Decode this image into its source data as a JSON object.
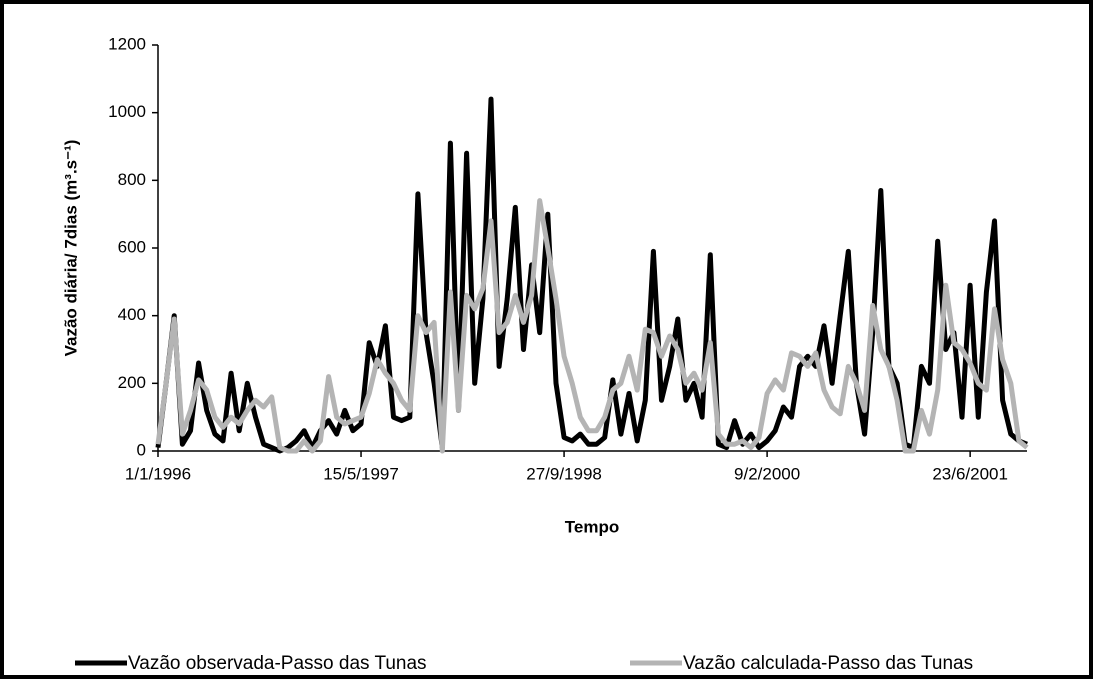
{
  "chart_data": {
    "type": "line",
    "ylabel": "Vazão diária/ 7dias (m³.s⁻¹)",
    "xlabel": "Tempo",
    "x": [
      0,
      20,
      40,
      60,
      80,
      100,
      120,
      140,
      160,
      180,
      200,
      220,
      240,
      260,
      280,
      300,
      320,
      340,
      360,
      380,
      400,
      420,
      440,
      460,
      480,
      500,
      520,
      540,
      560,
      580,
      600,
      620,
      640,
      660,
      680,
      700,
      720,
      740,
      760,
      780,
      800,
      820,
      840,
      860,
      880,
      900,
      920,
      940,
      960,
      980,
      1000,
      1020,
      1040,
      1060,
      1080,
      1100,
      1120,
      1140,
      1160,
      1180,
      1200,
      1220,
      1240,
      1260,
      1280,
      1300,
      1320,
      1340,
      1360,
      1380,
      1400,
      1420,
      1440,
      1460,
      1480,
      1500,
      1520,
      1540,
      1560,
      1580,
      1600,
      1620,
      1640,
      1660,
      1680,
      1700,
      1720,
      1740,
      1760,
      1780,
      1800,
      1820,
      1840,
      1860,
      1880,
      1900,
      1920,
      1940,
      1960,
      1980,
      2000,
      2020,
      2040,
      2060,
      2080,
      2100,
      2120,
      2140
    ],
    "series": [
      {
        "name": "Vazão observada-Passo das Tunas",
        "color": "#000000",
        "values": [
          10,
          200,
          400,
          20,
          60,
          260,
          120,
          50,
          30,
          230,
          60,
          200,
          100,
          20,
          10,
          0,
          10,
          30,
          60,
          10,
          60,
          90,
          50,
          120,
          60,
          80,
          320,
          250,
          370,
          100,
          90,
          100,
          760,
          350,
          200,
          10,
          910,
          120,
          880,
          200,
          450,
          1040,
          250,
          450,
          720,
          300,
          550,
          350,
          700,
          200,
          40,
          30,
          50,
          20,
          20,
          40,
          210,
          50,
          170,
          30,
          150,
          590,
          150,
          250,
          390,
          150,
          200,
          100,
          580,
          20,
          10,
          90,
          20,
          50,
          10,
          30,
          60,
          130,
          100,
          250,
          280,
          250,
          370,
          200,
          400,
          590,
          200,
          50,
          350,
          770,
          250,
          200,
          20,
          10,
          250,
          200,
          620,
          300,
          350,
          100,
          490,
          100,
          470,
          680,
          150,
          50,
          30,
          20
        ]
      },
      {
        "name": "Vazão calculada-Passo das Tunas",
        "color": "#b4b4b4",
        "values": [
          20,
          200,
          390,
          50,
          120,
          210,
          180,
          100,
          70,
          100,
          80,
          120,
          150,
          130,
          160,
          10,
          0,
          0,
          30,
          0,
          30,
          220,
          100,
          80,
          90,
          100,
          170,
          270,
          230,
          200,
          150,
          120,
          400,
          350,
          380,
          0,
          470,
          120,
          460,
          420,
          480,
          680,
          350,
          380,
          460,
          380,
          460,
          740,
          600,
          450,
          280,
          200,
          100,
          60,
          60,
          100,
          180,
          200,
          280,
          180,
          360,
          350,
          280,
          340,
          300,
          200,
          230,
          180,
          320,
          50,
          20,
          20,
          30,
          10,
          40,
          170,
          210,
          180,
          290,
          280,
          250,
          290,
          180,
          130,
          110,
          250,
          200,
          120,
          430,
          300,
          250,
          150,
          0,
          0,
          120,
          50,
          180,
          490,
          320,
          300,
          260,
          200,
          180,
          420,
          270,
          200,
          30,
          10
        ]
      }
    ],
    "xlim": [
      0,
      2140
    ],
    "xticks": [
      {
        "value": 0,
        "label": "1/1/1996"
      },
      {
        "value": 500,
        "label": "15/5/1997"
      },
      {
        "value": 1000,
        "label": "27/9/1998"
      },
      {
        "value": 1500,
        "label": "9/2/2000"
      },
      {
        "value": 2000,
        "label": "23/6/2001"
      }
    ],
    "ylim": [
      0,
      1200
    ],
    "yticks": [
      0,
      200,
      400,
      600,
      800,
      1000,
      1200
    ],
    "grid": false
  }
}
